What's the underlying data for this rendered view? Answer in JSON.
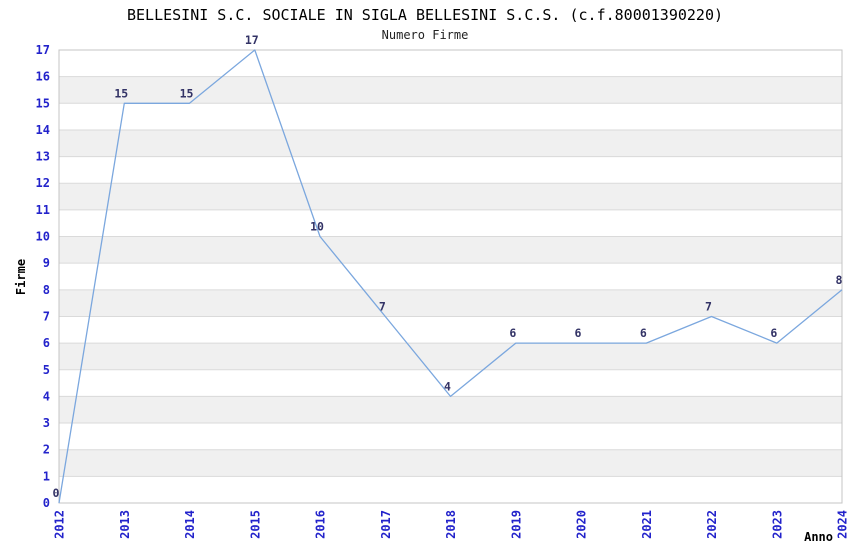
{
  "chart_data": {
    "type": "line",
    "title": "BELLESINI S.C. SOCIALE IN SIGLA BELLESINI S.C.S. (c.f.80001390220)",
    "subtitle": "Numero Firme",
    "xlabel": "Anno",
    "ylabel": "Firme",
    "x": [
      "2012",
      "2013",
      "2014",
      "2015",
      "2016",
      "2017",
      "2018",
      "2019",
      "2020",
      "2021",
      "2022",
      "2023",
      "2024"
    ],
    "values": [
      0,
      15,
      15,
      17,
      10,
      7,
      4,
      6,
      6,
      6,
      7,
      6,
      8
    ],
    "point_labels": [
      "0",
      "15",
      "15",
      "17",
      "10",
      "7",
      "4",
      "6",
      "6",
      "6",
      "7",
      "6",
      "8"
    ],
    "y_ticks": [
      "0",
      "1",
      "2",
      "3",
      "4",
      "5",
      "6",
      "7",
      "8",
      "9",
      "10",
      "11",
      "12",
      "13",
      "14",
      "15",
      "16",
      "17"
    ],
    "ylim": [
      0,
      17
    ],
    "grid": "horizontal",
    "banding": "alternating-horizontal-bands",
    "legend": "none",
    "colors": {
      "line": "#7BA7DE",
      "axis_tick_label": "#2323CB",
      "point_label": "#333366",
      "band_gray": "#F0F0F0",
      "band_white": "#FFFFFF",
      "grid_line": "#DADADA",
      "plot_border": "#C4C4C4",
      "title_text": "#000000",
      "background": "#FFFFFF"
    }
  }
}
